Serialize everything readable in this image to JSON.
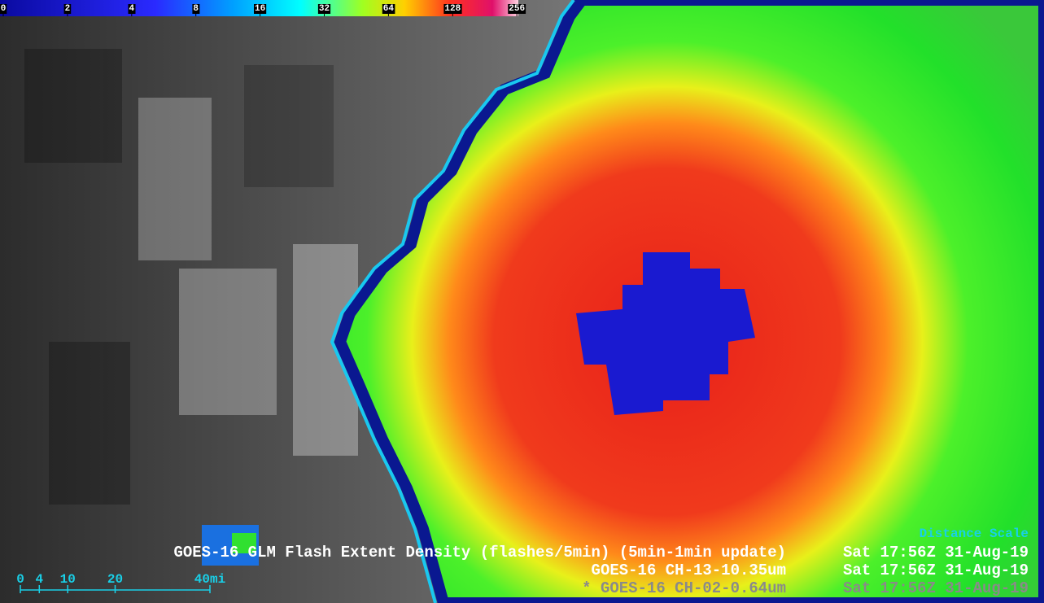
{
  "colorbar": {
    "ticks": [
      0,
      2,
      4,
      8,
      16,
      32,
      64,
      128,
      256
    ]
  },
  "distance_scale": {
    "title": "Distance Scale",
    "ticks": [
      0,
      4,
      10,
      20,
      {
        "value": 40,
        "label": "40mi"
      }
    ]
  },
  "captions": [
    {
      "product": "GOES-16 GLM Flash Extent Density (flashes/5min) (5min-1min update)",
      "time": "Sat 17:56Z 31-Aug-19"
    },
    {
      "product": "GOES-16 CH-13-10.35um",
      "time": "Sat 17:56Z 31-Aug-19"
    },
    {
      "product": "* GOES-16 CH-02-0.64um",
      "time": "Sat 17:56Z 31-Aug-19"
    }
  ]
}
